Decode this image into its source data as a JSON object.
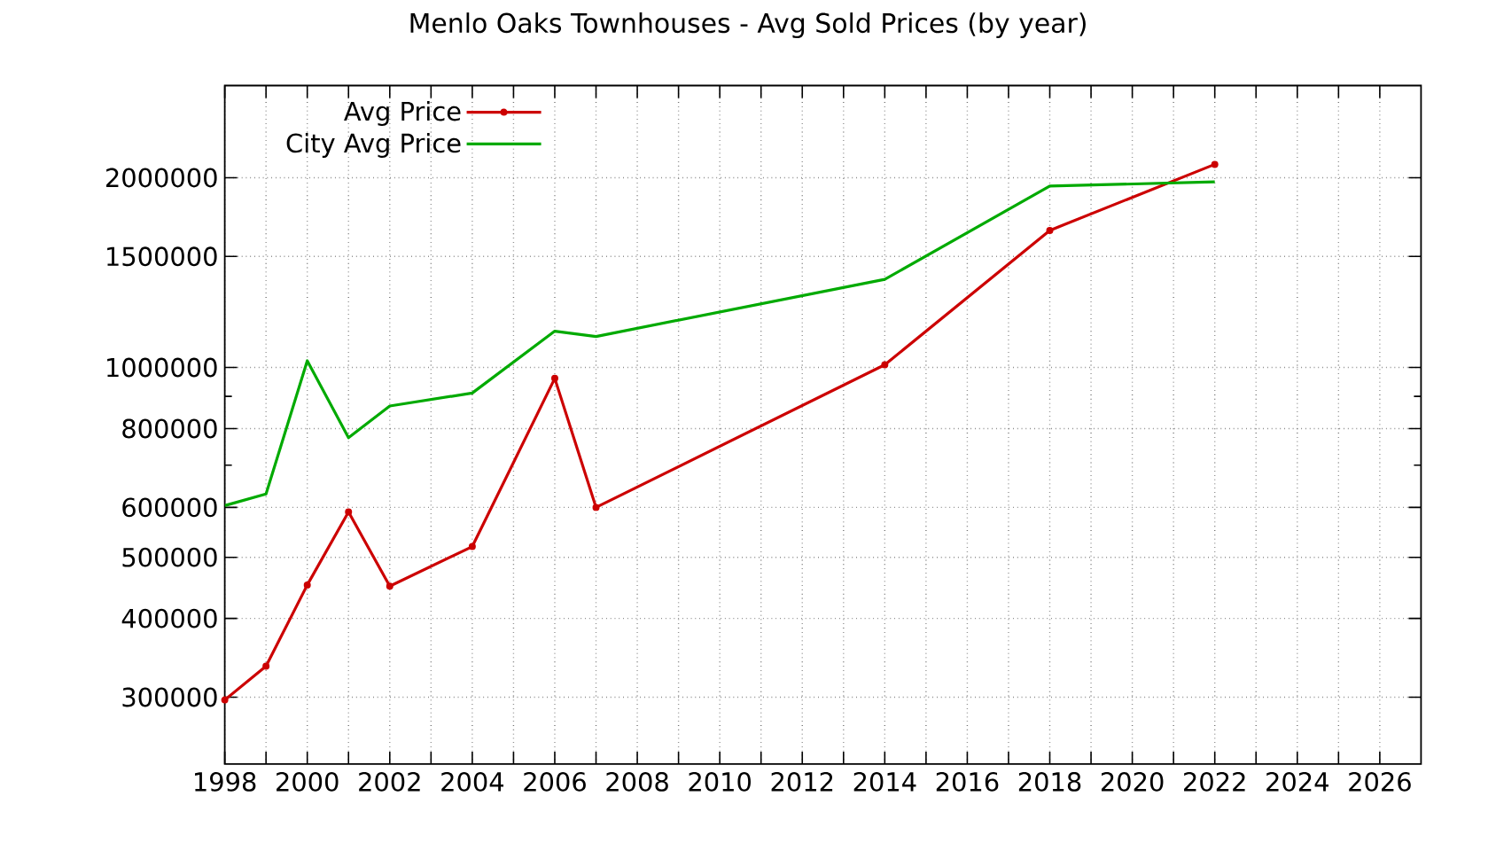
{
  "chart_data": {
    "type": "line",
    "title": "Menlo Oaks Townhouses - Avg Sold Prices (by year)",
    "x": [
      1998,
      1999,
      2000,
      2001,
      2002,
      2004,
      2006,
      2007,
      2014,
      2018,
      2022
    ],
    "series": [
      {
        "name": "Avg Price",
        "color": "#cc0000",
        "marker": "circle",
        "values": [
          297000,
          336000,
          452000,
          590000,
          450000,
          520000,
          961000,
          600000,
          1010000,
          1650000,
          2100000
        ]
      },
      {
        "name": "City Avg Price",
        "color": "#00aa00",
        "values": [
          604000,
          630000,
          1025000,
          774000,
          869000,
          911000,
          1142000,
          1120000,
          1380000,
          1940000,
          1970000
        ]
      }
    ],
    "log": "y",
    "xlim": [
      1998,
      2027
    ],
    "ylim": [
      235000,
      2800000
    ],
    "xticks": [
      1998,
      {
        "value": 1999,
        "label": null
      },
      2000,
      {
        "value": 2001,
        "label": null
      },
      2002,
      {
        "value": 2003,
        "label": null
      },
      2004,
      {
        "value": 2005,
        "label": null
      },
      2006,
      {
        "value": 2007,
        "label": null
      },
      2008,
      {
        "value": 2009,
        "label": null
      },
      2010,
      {
        "value": 2011,
        "label": null
      },
      2012,
      {
        "value": 2013,
        "label": null
      },
      2014,
      {
        "value": 2015,
        "label": null
      },
      2016,
      {
        "value": 2017,
        "label": null
      },
      2018,
      {
        "value": 2019,
        "label": null
      },
      2020,
      {
        "value": 2021,
        "label": null
      },
      2022,
      {
        "value": 2023,
        "label": null
      },
      2024,
      {
        "value": 2025,
        "label": null
      },
      2026
    ],
    "yticks": [
      300000,
      400000,
      500000,
      600000,
      {
        "value": 700000,
        "label": null
      },
      800000,
      {
        "value": 900000,
        "label": null
      },
      1000000,
      1500000,
      2000000
    ],
    "grid": true,
    "legend": "top left"
  }
}
